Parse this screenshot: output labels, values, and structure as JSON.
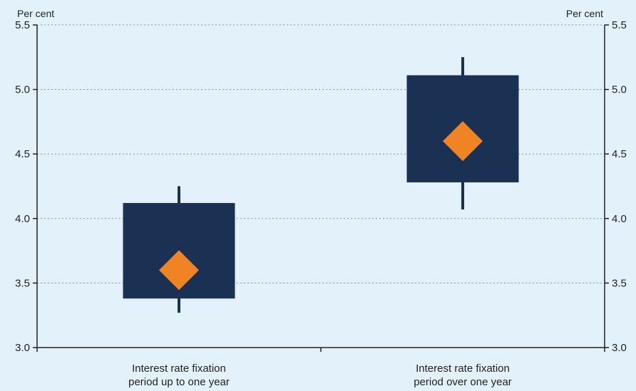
{
  "chart_data": {
    "type": "boxplot",
    "unit_left": "Per cent",
    "unit_right": "Per cent",
    "ylim": [
      3.0,
      5.5
    ],
    "yticks": [
      "3.0",
      "3.5",
      "4.0",
      "4.5",
      "5.0",
      "5.5"
    ],
    "grid": true,
    "categories": [
      [
        "Interest rate fixation",
        "period up to one year"
      ],
      [
        "Interest rate fixation",
        "period over one year"
      ]
    ],
    "boxes": [
      {
        "whisker_low": 3.27,
        "q1": 3.38,
        "median": 3.6,
        "q3": 4.12,
        "whisker_high": 4.25
      },
      {
        "whisker_low": 4.07,
        "q1": 4.28,
        "median": 4.6,
        "q3": 5.11,
        "whisker_high": 5.25
      }
    ],
    "colors": {
      "box": "#1b3153",
      "marker": "#f08324",
      "grid": "#8a8f96",
      "axis": "#222222"
    }
  }
}
